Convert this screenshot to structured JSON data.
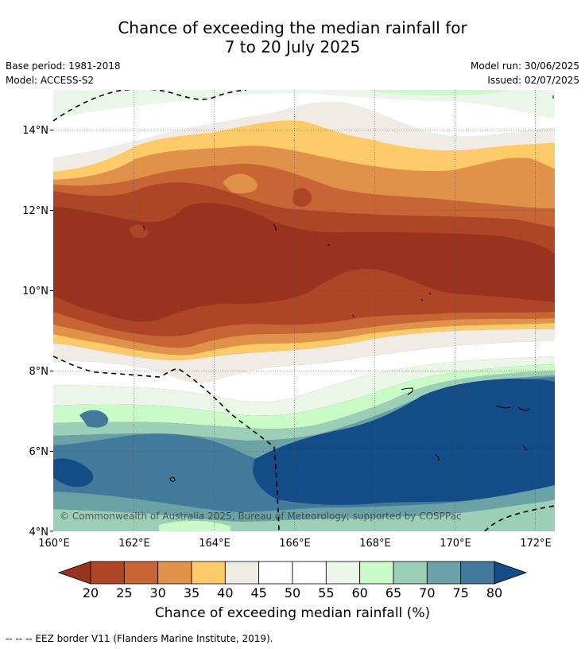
{
  "title_line1": "Chance of exceeding the median rainfall for",
  "title_line2": "7 to 20 July 2025",
  "meta": {
    "base_period": "Base period: 1981-2018",
    "model": "Model: ACCESS-S2",
    "model_run": "Model run: 30/06/2025",
    "issued": "Issued: 02/07/2025"
  },
  "copyright": "© Commonwealth of Australia 2025, Bureau of Meteorology; supported by COSPPac",
  "axes": {
    "lon_ticks": [
      "160°E",
      "162°E",
      "164°E",
      "166°E",
      "168°E",
      "170°E",
      "172°E"
    ],
    "lat_ticks": [
      "14°N",
      "12°N",
      "10°N",
      "8°N",
      "6°N",
      "4°N"
    ]
  },
  "colorbar": {
    "title": "Chance of exceeding median rainfall (%)",
    "ticks": [
      "20",
      "25",
      "30",
      "35",
      "40",
      "45",
      "50",
      "55",
      "60",
      "65",
      "70",
      "75",
      "80"
    ],
    "low_extend_color": "#99331f",
    "high_extend_color": "#144c87",
    "colors": [
      "#ad4526",
      "#c86535",
      "#e0914a",
      "#fdca6a",
      "#f0ebe5",
      "#ffffff",
      "#ffffff",
      "#eaf6e8",
      "#c9fac7",
      "#9ccfb8",
      "#6aa2a6",
      "#437a9b"
    ]
  },
  "legend_footnote": "--  --  -- EEZ border V11 (Flanders Marine Institute, 2019)."
}
